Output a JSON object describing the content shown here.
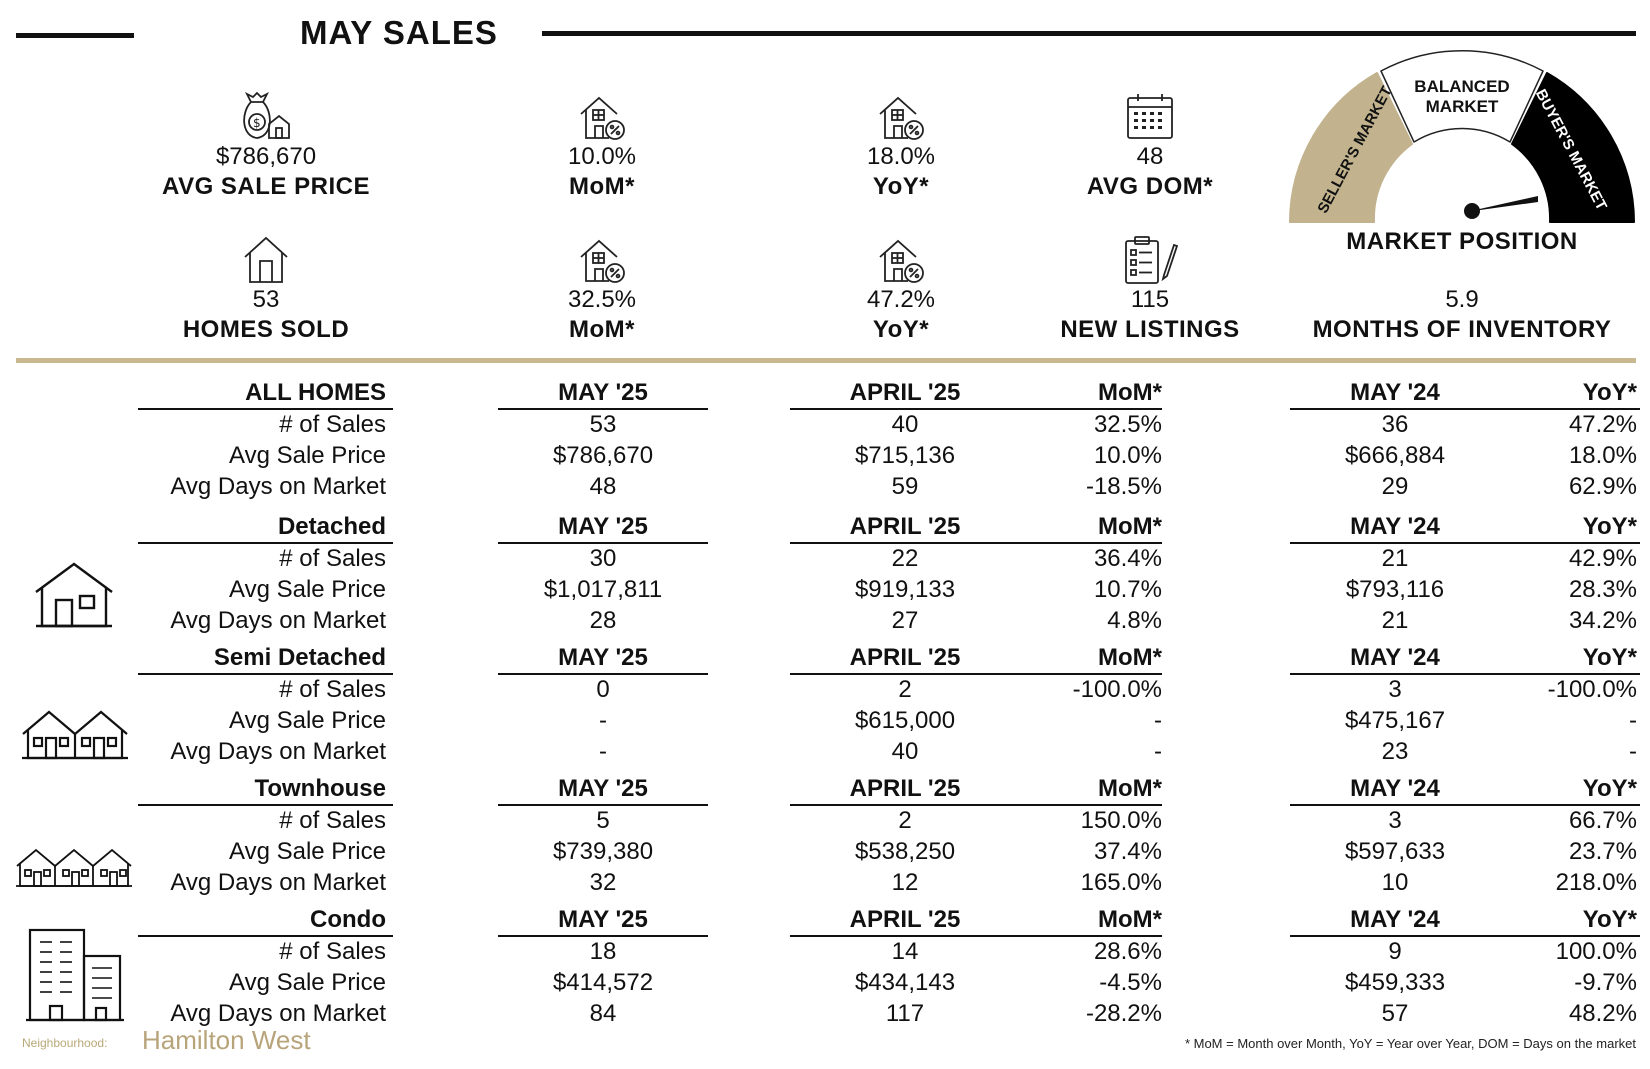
{
  "header": {
    "title": "MAY SALES"
  },
  "kpis_row1": [
    {
      "icon": "money-bag-house-icon",
      "value": "$786,670",
      "label": "AVG SALE PRICE"
    },
    {
      "icon": "house-percent-icon",
      "value": "10.0%",
      "label": "MoM*"
    },
    {
      "icon": "house-percent-icon",
      "value": "18.0%",
      "label": "YoY*"
    },
    {
      "icon": "calendar-icon",
      "value": "48",
      "label": "AVG DOM*"
    }
  ],
  "kpis_row2": [
    {
      "icon": "house-icon",
      "value": "53",
      "label": "HOMES SOLD"
    },
    {
      "icon": "house-percent-icon",
      "value": "32.5%",
      "label": "MoM*"
    },
    {
      "icon": "house-percent-icon",
      "value": "47.2%",
      "label": "YoY*"
    },
    {
      "icon": "clipboard-pencil-icon",
      "value": "115",
      "label": "NEW LISTINGS"
    }
  ],
  "gauge": {
    "seller_label": "SELLER'S MARKET",
    "balanced_label_1": "BALANCED",
    "balanced_label_2": "MARKET",
    "buyer_label": "BUYER'S MARKET",
    "title": "MARKET POSITION",
    "months_of_inventory": "5.9",
    "months_label": "MONTHS OF INVENTORY",
    "colors": {
      "seller": "#c2b38e",
      "balanced": "#ffffff",
      "buyer": "#000000"
    }
  },
  "table": {
    "col_headers": {
      "cur": "MAY '25",
      "prev": "APRIL '25",
      "mom": "MoM*",
      "ly": "MAY '24",
      "yoy": "YoY*"
    },
    "row_labels": [
      "# of Sales",
      "Avg Sale Price",
      "Avg Days on Market"
    ],
    "sections": [
      {
        "title": "ALL HOMES",
        "icon": "none",
        "rows": [
          [
            "53",
            "40",
            "32.5%",
            "36",
            "47.2%"
          ],
          [
            "$786,670",
            "$715,136",
            "10.0%",
            "$666,884",
            "18.0%"
          ],
          [
            "48",
            "59",
            "-18.5%",
            "29",
            "62.9%"
          ]
        ]
      },
      {
        "title": "Detached",
        "icon": "detached-house-icon",
        "rows": [
          [
            "30",
            "22",
            "36.4%",
            "21",
            "42.9%"
          ],
          [
            "$1,017,811",
            "$919,133",
            "10.7%",
            "$793,116",
            "28.3%"
          ],
          [
            "28",
            "27",
            "4.8%",
            "21",
            "34.2%"
          ]
        ]
      },
      {
        "title": "Semi Detached",
        "icon": "semi-detached-house-icon",
        "rows": [
          [
            "0",
            "2",
            "-100.0%",
            "3",
            "-100.0%"
          ],
          [
            "-",
            "$615,000",
            "-",
            "$475,167",
            "-"
          ],
          [
            "-",
            "40",
            "-",
            "23",
            "-"
          ]
        ]
      },
      {
        "title": "Townhouse",
        "icon": "townhouse-icon",
        "rows": [
          [
            "5",
            "2",
            "150.0%",
            "3",
            "66.7%"
          ],
          [
            "$739,380",
            "$538,250",
            "37.4%",
            "$597,633",
            "23.7%"
          ],
          [
            "32",
            "12",
            "165.0%",
            "10",
            "218.0%"
          ]
        ]
      },
      {
        "title": "Condo",
        "icon": "condo-building-icon",
        "rows": [
          [
            "18",
            "14",
            "28.6%",
            "9",
            "100.0%"
          ],
          [
            "$414,572",
            "$434,143",
            "-4.5%",
            "$459,333",
            "-9.7%"
          ],
          [
            "84",
            "117",
            "-28.2%",
            "57",
            "48.2%"
          ]
        ]
      }
    ]
  },
  "footer": {
    "neighbourhood_label": "Neighbourhood:",
    "neighbourhood_name": "Hamilton West",
    "footnote": "* MoM = Month over Month, YoY = Year over Year, DOM = Days on the market"
  }
}
